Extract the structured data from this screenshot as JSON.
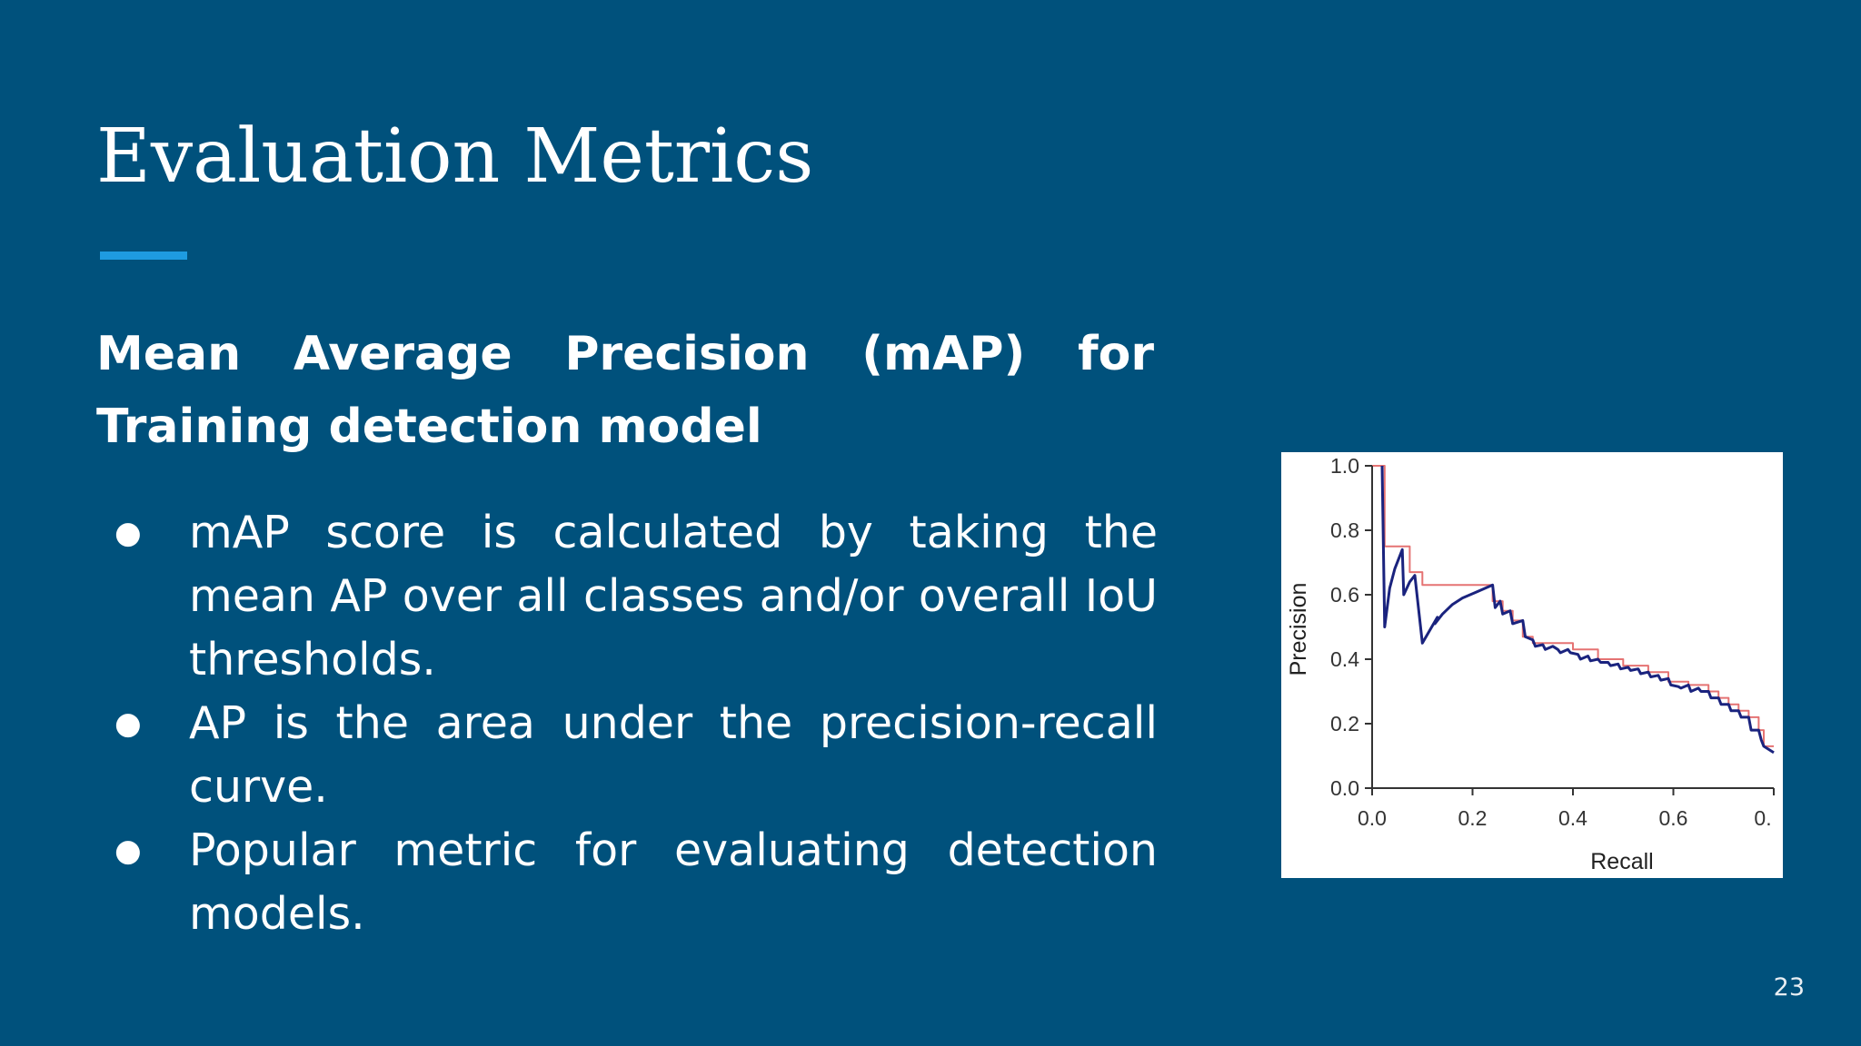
{
  "slide": {
    "title": "Evaluation Metrics",
    "subtitle": "Mean Average Precision (mAP) for Training detection model",
    "bullets": [
      "mAP score is calculated by taking the mean AP over all classes and/or overall IoU thresholds.",
      "AP is the area under the precision-recall curve.",
      "Popular metric for evaluating detection models."
    ],
    "bullet_glyph": "●",
    "page_number": "23",
    "colors": {
      "background": "#00517c",
      "accent": "#1e9be0",
      "curve": "#1a237e",
      "interpolated": "#e57373"
    }
  },
  "chart_data": {
    "type": "line",
    "xlabel": "Recall",
    "ylabel": "Precision",
    "xlim": [
      0,
      0.8
    ],
    "ylim": [
      0,
      1.0
    ],
    "x_ticks": [
      "0.0",
      "0.2",
      "0.4",
      "0.6",
      "0."
    ],
    "y_ticks": [
      "0.0",
      "0.2",
      "0.4",
      "0.6",
      "0.8",
      "1.0"
    ],
    "grid": false,
    "legend": "none",
    "series": [
      {
        "role": "precision-recall",
        "color": "#1a237e",
        "points": [
          [
            0.02,
            1.0
          ],
          [
            0.025,
            0.5
          ],
          [
            0.035,
            0.62
          ],
          [
            0.045,
            0.68
          ],
          [
            0.06,
            0.74
          ],
          [
            0.063,
            0.6
          ],
          [
            0.075,
            0.64
          ],
          [
            0.085,
            0.66
          ],
          [
            0.1,
            0.45
          ],
          [
            0.13,
            0.53
          ],
          [
            0.125,
            0.51
          ],
          [
            0.14,
            0.54
          ],
          [
            0.16,
            0.57
          ],
          [
            0.18,
            0.59
          ],
          [
            0.21,
            0.61
          ],
          [
            0.24,
            0.63
          ],
          [
            0.245,
            0.56
          ],
          [
            0.255,
            0.58
          ],
          [
            0.26,
            0.54
          ],
          [
            0.275,
            0.55
          ],
          [
            0.28,
            0.51
          ],
          [
            0.3,
            0.52
          ],
          [
            0.305,
            0.47
          ],
          [
            0.32,
            0.46
          ],
          [
            0.325,
            0.44
          ],
          [
            0.34,
            0.445
          ],
          [
            0.345,
            0.43
          ],
          [
            0.36,
            0.44
          ],
          [
            0.37,
            0.43
          ],
          [
            0.375,
            0.42
          ],
          [
            0.39,
            0.43
          ],
          [
            0.395,
            0.42
          ],
          [
            0.41,
            0.415
          ],
          [
            0.415,
            0.4
          ],
          [
            0.43,
            0.41
          ],
          [
            0.435,
            0.395
          ],
          [
            0.45,
            0.4
          ],
          [
            0.455,
            0.39
          ],
          [
            0.47,
            0.39
          ],
          [
            0.475,
            0.38
          ],
          [
            0.49,
            0.385
          ],
          [
            0.495,
            0.37
          ],
          [
            0.51,
            0.375
          ],
          [
            0.515,
            0.365
          ],
          [
            0.53,
            0.37
          ],
          [
            0.535,
            0.355
          ],
          [
            0.55,
            0.36
          ],
          [
            0.555,
            0.345
          ],
          [
            0.57,
            0.35
          ],
          [
            0.575,
            0.335
          ],
          [
            0.59,
            0.34
          ],
          [
            0.595,
            0.32
          ],
          [
            0.61,
            0.315
          ],
          [
            0.615,
            0.31
          ],
          [
            0.63,
            0.32
          ],
          [
            0.635,
            0.3
          ],
          [
            0.65,
            0.31
          ],
          [
            0.655,
            0.3
          ],
          [
            0.67,
            0.3
          ],
          [
            0.675,
            0.28
          ],
          [
            0.69,
            0.28
          ],
          [
            0.695,
            0.26
          ],
          [
            0.71,
            0.26
          ],
          [
            0.715,
            0.24
          ],
          [
            0.73,
            0.24
          ],
          [
            0.735,
            0.22
          ],
          [
            0.75,
            0.22
          ],
          [
            0.755,
            0.18
          ],
          [
            0.77,
            0.18
          ],
          [
            0.775,
            0.15
          ],
          [
            0.78,
            0.13
          ],
          [
            0.79,
            0.12
          ],
          [
            0.8,
            0.11
          ]
        ]
      },
      {
        "role": "interpolated-precision",
        "color": "#e57373",
        "points": [
          [
            0.0,
            1.0
          ],
          [
            0.025,
            1.0
          ],
          [
            0.025,
            0.75
          ],
          [
            0.075,
            0.75
          ],
          [
            0.075,
            0.67
          ],
          [
            0.1,
            0.67
          ],
          [
            0.1,
            0.63
          ],
          [
            0.24,
            0.63
          ],
          [
            0.24,
            0.58
          ],
          [
            0.26,
            0.58
          ],
          [
            0.26,
            0.55
          ],
          [
            0.28,
            0.55
          ],
          [
            0.28,
            0.52
          ],
          [
            0.3,
            0.52
          ],
          [
            0.3,
            0.47
          ],
          [
            0.32,
            0.47
          ],
          [
            0.32,
            0.45
          ],
          [
            0.4,
            0.45
          ],
          [
            0.4,
            0.43
          ],
          [
            0.45,
            0.43
          ],
          [
            0.45,
            0.4
          ],
          [
            0.5,
            0.4
          ],
          [
            0.5,
            0.38
          ],
          [
            0.55,
            0.38
          ],
          [
            0.55,
            0.36
          ],
          [
            0.59,
            0.36
          ],
          [
            0.59,
            0.33
          ],
          [
            0.63,
            0.33
          ],
          [
            0.63,
            0.32
          ],
          [
            0.67,
            0.32
          ],
          [
            0.67,
            0.3
          ],
          [
            0.69,
            0.3
          ],
          [
            0.69,
            0.28
          ],
          [
            0.71,
            0.28
          ],
          [
            0.71,
            0.26
          ],
          [
            0.73,
            0.26
          ],
          [
            0.73,
            0.24
          ],
          [
            0.75,
            0.24
          ],
          [
            0.75,
            0.22
          ],
          [
            0.77,
            0.22
          ],
          [
            0.77,
            0.18
          ],
          [
            0.78,
            0.18
          ],
          [
            0.78,
            0.13
          ],
          [
            0.8,
            0.13
          ]
        ]
      }
    ]
  }
}
